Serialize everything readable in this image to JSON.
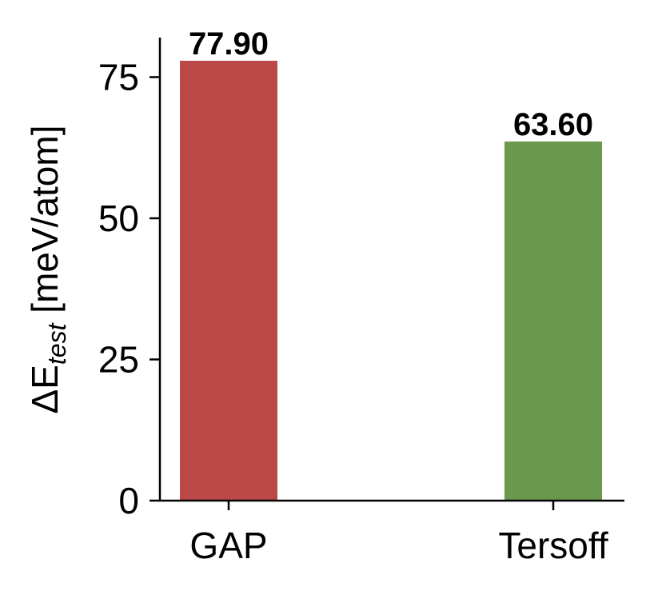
{
  "chart_data": {
    "type": "bar",
    "categories": [
      "GAP",
      "Tersoff"
    ],
    "values": [
      77.9,
      63.6
    ],
    "data_labels": [
      "77.90",
      "63.60"
    ],
    "colors": [
      "#bd4848",
      "#6a994e"
    ],
    "title": "",
    "xlabel": "",
    "ylabel": "ΔE",
    "ylabel_subscript": "test",
    "ylabel_unit": " [meV/atom]",
    "ylim": [
      0,
      82
    ],
    "yticks": [
      0,
      25,
      50,
      75
    ],
    "ytick_labels": [
      "0",
      "25",
      "50",
      "75"
    ],
    "grid": false,
    "legend": "none"
  }
}
